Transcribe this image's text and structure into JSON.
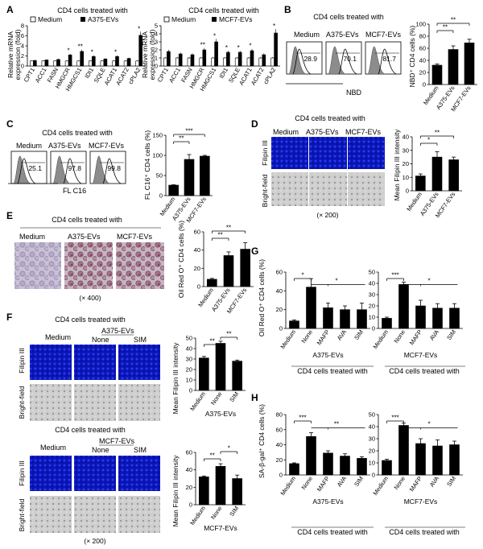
{
  "figure": {
    "panel_letters": [
      "A",
      "B",
      "C",
      "D",
      "E",
      "F",
      "G",
      "H"
    ],
    "treated_header": "CD4 cells treated with",
    "medium": "Medium",
    "a375": "A375-EVs",
    "mcf7": "MCF7-EVs",
    "none": "None",
    "sim": "SIM",
    "filipin": "Filipin III",
    "brightfield": "Bright-field",
    "mag200": "(× 200)",
    "mag400": "(× 400)",
    "nbd_axis": "NBD",
    "fl_axis": "FL C16",
    "mrna_ylabel": [
      "Relative mRNA",
      "expression (fold)"
    ],
    "b_ylabel": "NBD⁺ CD4 cells (%)",
    "c_ylabel": "FL C16⁺ CD4 cells (%)",
    "filipin_ylabel": "Mean Filipin III intensity",
    "oil_ylabel": "Oil Red O⁺ CD4 cells (%)",
    "sabgal_ylabel": "SA-β-gal⁺ CD4 cells (%)",
    "flow_b": [
      "28.9",
      "70.1",
      "81.7"
    ],
    "flow_c": [
      "25.1",
      "97.8",
      "99.8"
    ]
  },
  "chart_data": [
    {
      "panel": "A-left",
      "type": "bar",
      "categories": [
        "CPT1",
        "ACC1",
        "FASN",
        "HMGCR",
        "HMGCS1",
        "IDI1",
        "SQLE",
        "ACAT1",
        "ACAT2",
        "cPLA2"
      ],
      "series": [
        {
          "name": "Medium",
          "values": [
            1,
            1,
            1,
            1,
            1,
            1,
            1,
            1,
            1,
            1
          ]
        },
        {
          "name": "A375-EVs",
          "values": [
            1.1,
            1.2,
            1.3,
            2.2,
            2.9,
            1.9,
            1.4,
            1.9,
            1.5,
            6.1
          ]
        }
      ],
      "ylim": [
        0,
        8
      ],
      "yticks": [
        0,
        2,
        4,
        6,
        8
      ],
      "stars": [
        "",
        "",
        "",
        "*",
        "**",
        "*",
        "",
        "*",
        "",
        "*"
      ]
    },
    {
      "panel": "A-right",
      "type": "bar",
      "categories": [
        "CPT1",
        "ACC1",
        "FASN",
        "HMGCR",
        "HMGCS1",
        "IDI1",
        "SQLE",
        "ACAT1",
        "ACAT2",
        "cPLA2"
      ],
      "series": [
        {
          "name": "Medium",
          "values": [
            1,
            1,
            1,
            1,
            1,
            1,
            1,
            1,
            1,
            1
          ]
        },
        {
          "name": "MCF7-EVs",
          "values": [
            1.8,
            1.5,
            1.4,
            2.0,
            3.0,
            1.7,
            1.7,
            1.9,
            1.4,
            4.1
          ]
        }
      ],
      "ylim": [
        0,
        5
      ],
      "yticks": [
        0,
        1,
        2,
        3,
        4,
        5
      ],
      "stars": [
        "",
        "",
        "",
        "**",
        "*",
        "*",
        "*",
        "*",
        "",
        "*"
      ]
    },
    {
      "panel": "B",
      "type": "bar",
      "categories": [
        "Medium",
        "A375-EVs",
        "MCF7-EVs"
      ],
      "values": [
        32,
        58,
        69
      ],
      "errors": [
        2,
        6,
        6
      ],
      "ylim": [
        0,
        100
      ],
      "yticks": [
        0,
        20,
        40,
        60,
        80,
        100
      ],
      "sig": [
        {
          "from": 0,
          "to": 1,
          "label": "**"
        },
        {
          "from": 0,
          "to": 2,
          "label": "**"
        }
      ]
    },
    {
      "panel": "C",
      "type": "bar",
      "categories": [
        "Medium",
        "A375-EVs",
        "MCF7-EVs"
      ],
      "values": [
        26,
        90,
        98
      ],
      "errors": [
        1,
        12,
        2
      ],
      "ylim": [
        0,
        150
      ],
      "yticks": [
        0,
        50,
        100,
        150
      ],
      "sig": [
        {
          "from": 0,
          "to": 1,
          "label": "**"
        },
        {
          "from": 0,
          "to": 2,
          "label": "***"
        }
      ]
    },
    {
      "panel": "D",
      "type": "bar",
      "categories": [
        "Medium",
        "A375-EVs",
        "MCF7-EVs"
      ],
      "values": [
        11,
        25,
        23
      ],
      "errors": [
        1.5,
        4,
        2
      ],
      "ylim": [
        0,
        40
      ],
      "yticks": [
        0,
        10,
        20,
        30,
        40
      ],
      "sig": [
        {
          "from": 0,
          "to": 1,
          "label": "*"
        },
        {
          "from": 0,
          "to": 2,
          "label": "**"
        }
      ]
    },
    {
      "panel": "E",
      "type": "bar",
      "categories": [
        "Medium",
        "A375-EVs",
        "MCF7-EVs"
      ],
      "values": [
        8,
        34,
        41
      ],
      "errors": [
        1,
        4,
        7
      ],
      "ylim": [
        0,
        60
      ],
      "yticks": [
        0,
        20,
        40,
        60
      ],
      "sig": [
        {
          "from": 0,
          "to": 1,
          "label": "**"
        },
        {
          "from": 0,
          "to": 2,
          "label": "**"
        }
      ]
    },
    {
      "panel": "F-top",
      "type": "bar",
      "categories": [
        "Medium",
        "None",
        "SIM"
      ],
      "xlabel": "A375-EVs",
      "values": [
        31,
        45,
        28
      ],
      "errors": [
        1.5,
        2,
        1
      ],
      "ylim": [
        0,
        50
      ],
      "yticks": [
        0,
        10,
        20,
        30,
        40,
        50
      ],
      "sig": [
        {
          "from": 0,
          "to": 1,
          "label": "**"
        },
        {
          "from": 1,
          "to": 2,
          "label": "**"
        }
      ]
    },
    {
      "panel": "F-bottom",
      "type": "bar",
      "categories": [
        "Medium",
        "None",
        "SIM"
      ],
      "xlabel": "MCF7-EVs",
      "values": [
        32,
        44,
        30
      ],
      "errors": [
        1,
        3,
        4
      ],
      "ylim": [
        0,
        60
      ],
      "yticks": [
        0,
        20,
        40,
        60
      ],
      "sig": [
        {
          "from": 0,
          "to": 1,
          "label": "**"
        },
        {
          "from": 1,
          "to": 2,
          "label": "*"
        }
      ]
    },
    {
      "panel": "G-left",
      "type": "bar",
      "categories": [
        "Medium",
        "None",
        "MAFP",
        "AVA",
        "SIM"
      ],
      "xlabel": "A375-EVs",
      "values": [
        8,
        44,
        22,
        20,
        20
      ],
      "errors": [
        1,
        9,
        5,
        4,
        7
      ],
      "ylim": [
        0,
        60
      ],
      "yticks": [
        0,
        20,
        40,
        60
      ],
      "sig": [
        {
          "from": 0,
          "to": 1,
          "label": "*"
        },
        {
          "from": 1,
          "to": "2-4",
          "label": "*"
        }
      ]
    },
    {
      "panel": "G-right",
      "type": "bar",
      "categories": [
        "Medium",
        "None",
        "MAFP",
        "AVA",
        "SIM"
      ],
      "xlabel": "MCF7-EVs",
      "values": [
        9,
        39,
        20,
        18,
        18
      ],
      "errors": [
        1,
        2,
        5,
        4,
        4
      ],
      "ylim": [
        0,
        50
      ],
      "yticks": [
        0,
        10,
        20,
        30,
        40,
        50
      ],
      "sig": [
        {
          "from": 0,
          "to": 1,
          "label": "***"
        },
        {
          "from": 1,
          "to": "2-4",
          "label": "*"
        }
      ]
    },
    {
      "panel": "H-left",
      "type": "bar",
      "categories": [
        "Medium",
        "None",
        "MAFP",
        "AVA",
        "SIM"
      ],
      "xlabel": "A375-EVs",
      "values": [
        15,
        51,
        29,
        25,
        22
      ],
      "errors": [
        1,
        5,
        3,
        3,
        2
      ],
      "ylim": [
        0,
        80
      ],
      "yticks": [
        0,
        20,
        40,
        60,
        80
      ],
      "sig": [
        {
          "from": 0,
          "to": 1,
          "label": "***"
        },
        {
          "from": 1,
          "to": "2-4",
          "label": "**"
        }
      ]
    },
    {
      "panel": "H-right",
      "type": "bar",
      "categories": [
        "Medium",
        "None",
        "MAFP",
        "AVA",
        "SIM"
      ],
      "xlabel": "MCF7-EVs",
      "values": [
        12,
        41,
        26,
        24,
        25
      ],
      "errors": [
        1,
        2,
        4,
        5,
        3
      ],
      "ylim": [
        0,
        50
      ],
      "yticks": [
        0,
        10,
        20,
        30,
        40,
        50
      ],
      "sig": [
        {
          "from": 0,
          "to": 1,
          "label": "***"
        },
        {
          "from": 1,
          "to": "2-4",
          "label": "*"
        }
      ]
    }
  ]
}
